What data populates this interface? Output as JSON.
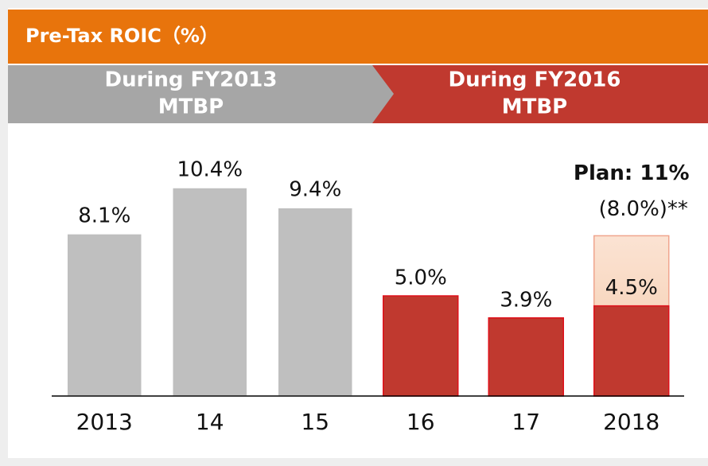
{
  "chart_data": {
    "type": "bar",
    "title": "Pre-Tax ROIC（%）",
    "periods": [
      {
        "lines": [
          "During FY2013",
          "MTBP"
        ],
        "color": "#a6a6a6"
      },
      {
        "lines": [
          "During FY2016",
          "MTBP"
        ],
        "color": "#c0392f"
      }
    ],
    "categories": [
      "2013",
      "14",
      "15",
      "16",
      "17",
      "2018"
    ],
    "values": [
      8.1,
      10.4,
      9.4,
      5.0,
      3.9,
      4.5
    ],
    "value_labels": [
      "8.1%",
      "10.4%",
      "9.4%",
      "5.0%",
      "3.9%",
      "4.5%"
    ],
    "colors": [
      "#bfbfbf",
      "#bfbfbf",
      "#bfbfbf",
      "#c0392f",
      "#c0392f",
      "#c0392f"
    ],
    "plan": {
      "label": "Plan: 11%",
      "value": 8.0,
      "value_label": "(8.0%)**"
    }
  }
}
